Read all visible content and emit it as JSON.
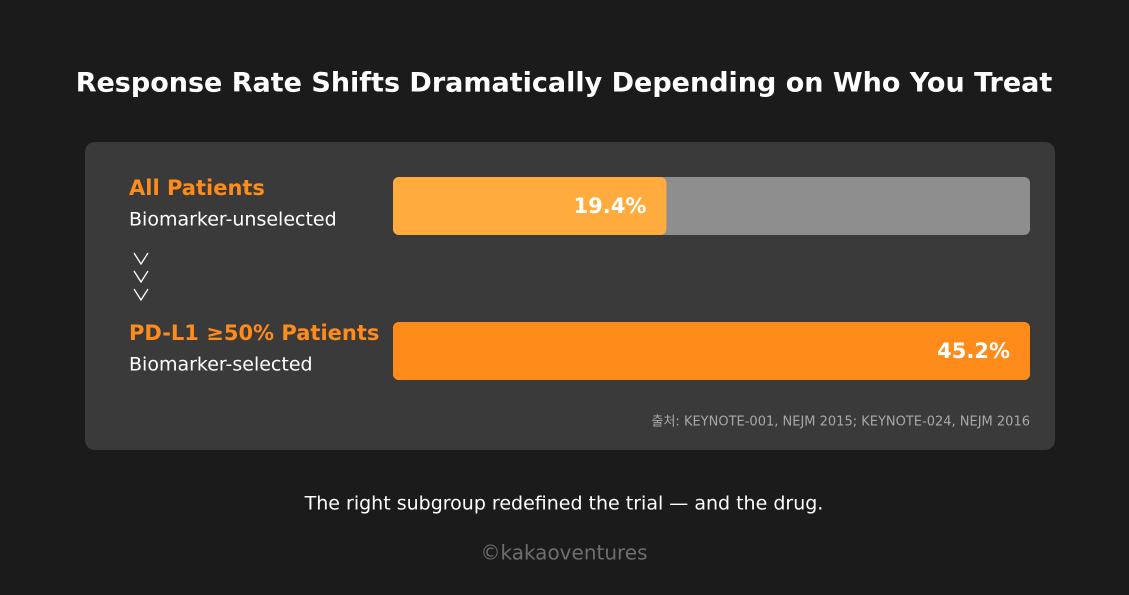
{
  "chart_data": {
    "type": "bar",
    "orientation": "horizontal",
    "title": "Response Rate Shifts Dramatically Depending on Who You Treat",
    "categories": [
      "All Patients",
      "PD-L1 ≥50% Patients"
    ],
    "category_notes": [
      "Biomarker-unselected",
      "Biomarker-selected"
    ],
    "values": [
      19.4,
      45.2
    ],
    "value_labels": [
      "19.4%",
      "45.2%"
    ],
    "colors": [
      "#ffab3d",
      "#ff8c1a"
    ],
    "track_color": "#8e8e8e",
    "xlim": [
      0,
      45.2
    ],
    "source": "출처: KEYNOTE-001, NEJM 2015; KEYNOTE-024, NEJM 2016",
    "caption": "The right subgroup redefined the trial — and the drug.",
    "footer": "©kakaoventures"
  }
}
